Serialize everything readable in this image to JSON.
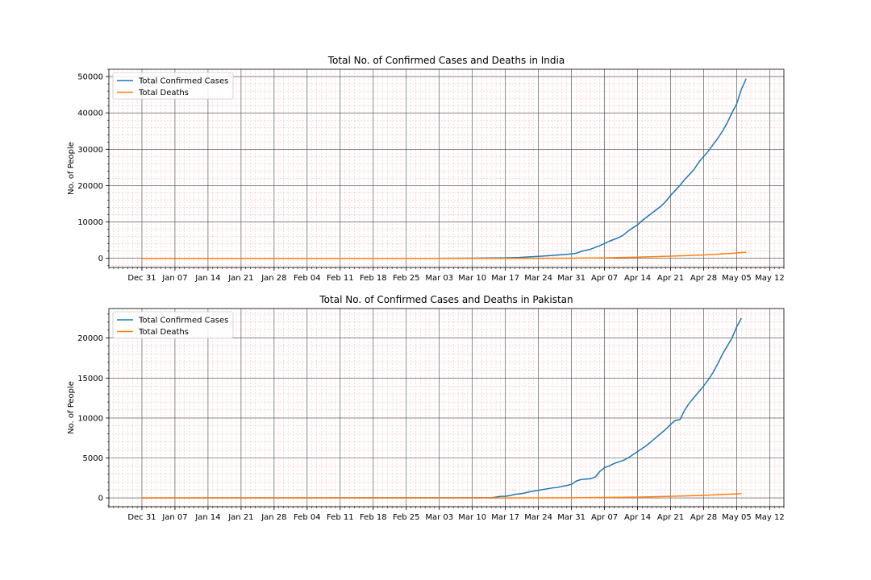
{
  "chart_data": [
    {
      "type": "line",
      "title": "Total No. of Confirmed Cases and Deaths in India",
      "ylabel": "No. of People",
      "xlabel": "",
      "xlim": [
        "2019-12-24",
        "2020-05-15"
      ],
      "ylim": [
        -2500,
        52000
      ],
      "x_ticks": [
        "2019-12-31",
        "2020-01-07",
        "2020-01-14",
        "2020-01-21",
        "2020-01-28",
        "2020-02-04",
        "2020-02-11",
        "2020-02-18",
        "2020-02-25",
        "2020-03-03",
        "2020-03-10",
        "2020-03-17",
        "2020-03-24",
        "2020-03-31",
        "2020-04-07",
        "2020-04-14",
        "2020-04-21",
        "2020-04-28",
        "2020-05-05",
        "2020-05-12"
      ],
      "x_tick_labels": [
        "Dec 31",
        "Jan 07",
        "Jan 14",
        "Jan 21",
        "Jan 28",
        "Feb 04",
        "Feb 11",
        "Feb 18",
        "Feb 25",
        "Mar 03",
        "Mar 10",
        "Mar 17",
        "Mar 24",
        "Mar 31",
        "Apr 07",
        "Apr 14",
        "Apr 21",
        "Apr 28",
        "May 05",
        "May 12"
      ],
      "y_ticks": [
        0,
        10000,
        20000,
        30000,
        40000,
        50000
      ],
      "y_minor_step": 2000,
      "grid": true,
      "legend": "upper-left",
      "series": [
        {
          "name": "Total Confirmed Cases",
          "color": "#1f77b4",
          "points": [
            [
              "2019-12-31",
              0
            ],
            [
              "2020-01-30",
              1
            ],
            [
              "2020-02-03",
              3
            ],
            [
              "2020-03-02",
              5
            ],
            [
              "2020-03-05",
              30
            ],
            [
              "2020-03-10",
              60
            ],
            [
              "2020-03-14",
              100
            ],
            [
              "2020-03-17",
              137
            ],
            [
              "2020-03-20",
              250
            ],
            [
              "2020-03-22",
              400
            ],
            [
              "2020-03-24",
              536
            ],
            [
              "2020-03-26",
              700
            ],
            [
              "2020-03-28",
              900
            ],
            [
              "2020-03-30",
              1100
            ],
            [
              "2020-03-31",
              1250
            ],
            [
              "2020-04-01",
              1400
            ],
            [
              "2020-04-02",
              1900
            ],
            [
              "2020-04-04",
              2500
            ],
            [
              "2020-04-05",
              3000
            ],
            [
              "2020-04-06",
              3500
            ],
            [
              "2020-04-07",
              4100
            ],
            [
              "2020-04-08",
              4700
            ],
            [
              "2020-04-10",
              5700
            ],
            [
              "2020-04-11",
              6400
            ],
            [
              "2020-04-12",
              7500
            ],
            [
              "2020-04-13",
              8400
            ],
            [
              "2020-04-14",
              9200
            ],
            [
              "2020-04-15",
              10400
            ],
            [
              "2020-04-16",
              11400
            ],
            [
              "2020-04-17",
              12400
            ],
            [
              "2020-04-18",
              13400
            ],
            [
              "2020-04-19",
              14400
            ],
            [
              "2020-04-20",
              15700
            ],
            [
              "2020-04-21",
              17300
            ],
            [
              "2020-04-22",
              18700
            ],
            [
              "2020-04-23",
              20100
            ],
            [
              "2020-04-24",
              21700
            ],
            [
              "2020-04-25",
              23100
            ],
            [
              "2020-04-26",
              24500
            ],
            [
              "2020-04-27",
              26500
            ],
            [
              "2020-04-28",
              28000
            ],
            [
              "2020-04-29",
              29500
            ],
            [
              "2020-04-30",
              31300
            ],
            [
              "2020-05-01",
              33000
            ],
            [
              "2020-05-02",
              35000
            ],
            [
              "2020-05-03",
              37300
            ],
            [
              "2020-05-04",
              40000
            ],
            [
              "2020-05-05",
              42500
            ],
            [
              "2020-05-06",
              46500
            ],
            [
              "2020-05-07",
              49400
            ]
          ]
        },
        {
          "name": "Total Deaths",
          "color": "#ff7f0e",
          "points": [
            [
              "2019-12-31",
              0
            ],
            [
              "2020-03-13",
              1
            ],
            [
              "2020-03-24",
              10
            ],
            [
              "2020-03-31",
              35
            ],
            [
              "2020-04-07",
              120
            ],
            [
              "2020-04-14",
              330
            ],
            [
              "2020-04-21",
              590
            ],
            [
              "2020-04-28",
              930
            ],
            [
              "2020-05-04",
              1370
            ],
            [
              "2020-05-06",
              1600
            ],
            [
              "2020-05-07",
              1690
            ]
          ]
        }
      ]
    },
    {
      "type": "line",
      "title": "Total No. of Confirmed Cases and Deaths in Pakistan",
      "ylabel": "No. of People",
      "xlabel": "",
      "xlim": [
        "2019-12-24",
        "2020-05-15"
      ],
      "ylim": [
        -1100,
        23700
      ],
      "x_ticks": [
        "2019-12-31",
        "2020-01-07",
        "2020-01-14",
        "2020-01-21",
        "2020-01-28",
        "2020-02-04",
        "2020-02-11",
        "2020-02-18",
        "2020-02-25",
        "2020-03-03",
        "2020-03-10",
        "2020-03-17",
        "2020-03-24",
        "2020-03-31",
        "2020-04-07",
        "2020-04-14",
        "2020-04-21",
        "2020-04-28",
        "2020-05-05",
        "2020-05-12"
      ],
      "x_tick_labels": [
        "Dec 31",
        "Jan 07",
        "Jan 14",
        "Jan 21",
        "Jan 28",
        "Feb 04",
        "Feb 11",
        "Feb 18",
        "Feb 25",
        "Mar 03",
        "Mar 10",
        "Mar 17",
        "Mar 24",
        "Mar 31",
        "Apr 07",
        "Apr 14",
        "Apr 21",
        "Apr 28",
        "May 05",
        "May 12"
      ],
      "y_ticks": [
        0,
        5000,
        10000,
        15000,
        20000
      ],
      "y_minor_step": 1000,
      "grid": true,
      "legend": "upper-left",
      "series": [
        {
          "name": "Total Confirmed Cases",
          "color": "#1f77b4",
          "points": [
            [
              "2019-12-31",
              0
            ],
            [
              "2020-03-14",
              20
            ],
            [
              "2020-03-15",
              100
            ],
            [
              "2020-03-16",
              200
            ],
            [
              "2020-03-17",
              200
            ],
            [
              "2020-03-18",
              300
            ],
            [
              "2020-03-19",
              450
            ],
            [
              "2020-03-20",
              500
            ],
            [
              "2020-03-21",
              600
            ],
            [
              "2020-03-22",
              750
            ],
            [
              "2020-03-23",
              850
            ],
            [
              "2020-03-24",
              950
            ],
            [
              "2020-03-25",
              1050
            ],
            [
              "2020-03-26",
              1150
            ],
            [
              "2020-03-27",
              1250
            ],
            [
              "2020-03-28",
              1300
            ],
            [
              "2020-03-29",
              1450
            ],
            [
              "2020-03-30",
              1550
            ],
            [
              "2020-03-31",
              1700
            ],
            [
              "2020-04-01",
              2100
            ],
            [
              "2020-04-02",
              2300
            ],
            [
              "2020-04-03",
              2350
            ],
            [
              "2020-04-04",
              2400
            ],
            [
              "2020-04-05",
              2600
            ],
            [
              "2020-04-06",
              3300
            ],
            [
              "2020-04-07",
              3800
            ],
            [
              "2020-04-08",
              4000
            ],
            [
              "2020-04-09",
              4300
            ],
            [
              "2020-04-10",
              4500
            ],
            [
              "2020-04-11",
              4700
            ],
            [
              "2020-04-12",
              5000
            ],
            [
              "2020-04-13",
              5400
            ],
            [
              "2020-04-14",
              5800
            ],
            [
              "2020-04-15",
              6200
            ],
            [
              "2020-04-16",
              6600
            ],
            [
              "2020-04-17",
              7100
            ],
            [
              "2020-04-18",
              7600
            ],
            [
              "2020-04-19",
              8100
            ],
            [
              "2020-04-20",
              8600
            ],
            [
              "2020-04-21",
              9200
            ],
            [
              "2020-04-22",
              9700
            ],
            [
              "2020-04-23",
              9800
            ],
            [
              "2020-04-24",
              11000
            ],
            [
              "2020-04-25",
              11900
            ],
            [
              "2020-04-26",
              12600
            ],
            [
              "2020-04-27",
              13300
            ],
            [
              "2020-04-28",
              14000
            ],
            [
              "2020-04-29",
              14800
            ],
            [
              "2020-04-30",
              15700
            ],
            [
              "2020-05-01",
              16800
            ],
            [
              "2020-05-02",
              18000
            ],
            [
              "2020-05-03",
              19000
            ],
            [
              "2020-05-04",
              20000
            ],
            [
              "2020-05-05",
              21400
            ],
            [
              "2020-05-06",
              22500
            ]
          ]
        },
        {
          "name": "Total Deaths",
          "color": "#ff7f0e",
          "points": [
            [
              "2019-12-31",
              0
            ],
            [
              "2020-03-18",
              2
            ],
            [
              "2020-03-24",
              8
            ],
            [
              "2020-03-31",
              25
            ],
            [
              "2020-04-07",
              60
            ],
            [
              "2020-04-14",
              100
            ],
            [
              "2020-04-21",
              200
            ],
            [
              "2020-04-28",
              320
            ],
            [
              "2020-05-06",
              530
            ]
          ]
        }
      ]
    }
  ]
}
